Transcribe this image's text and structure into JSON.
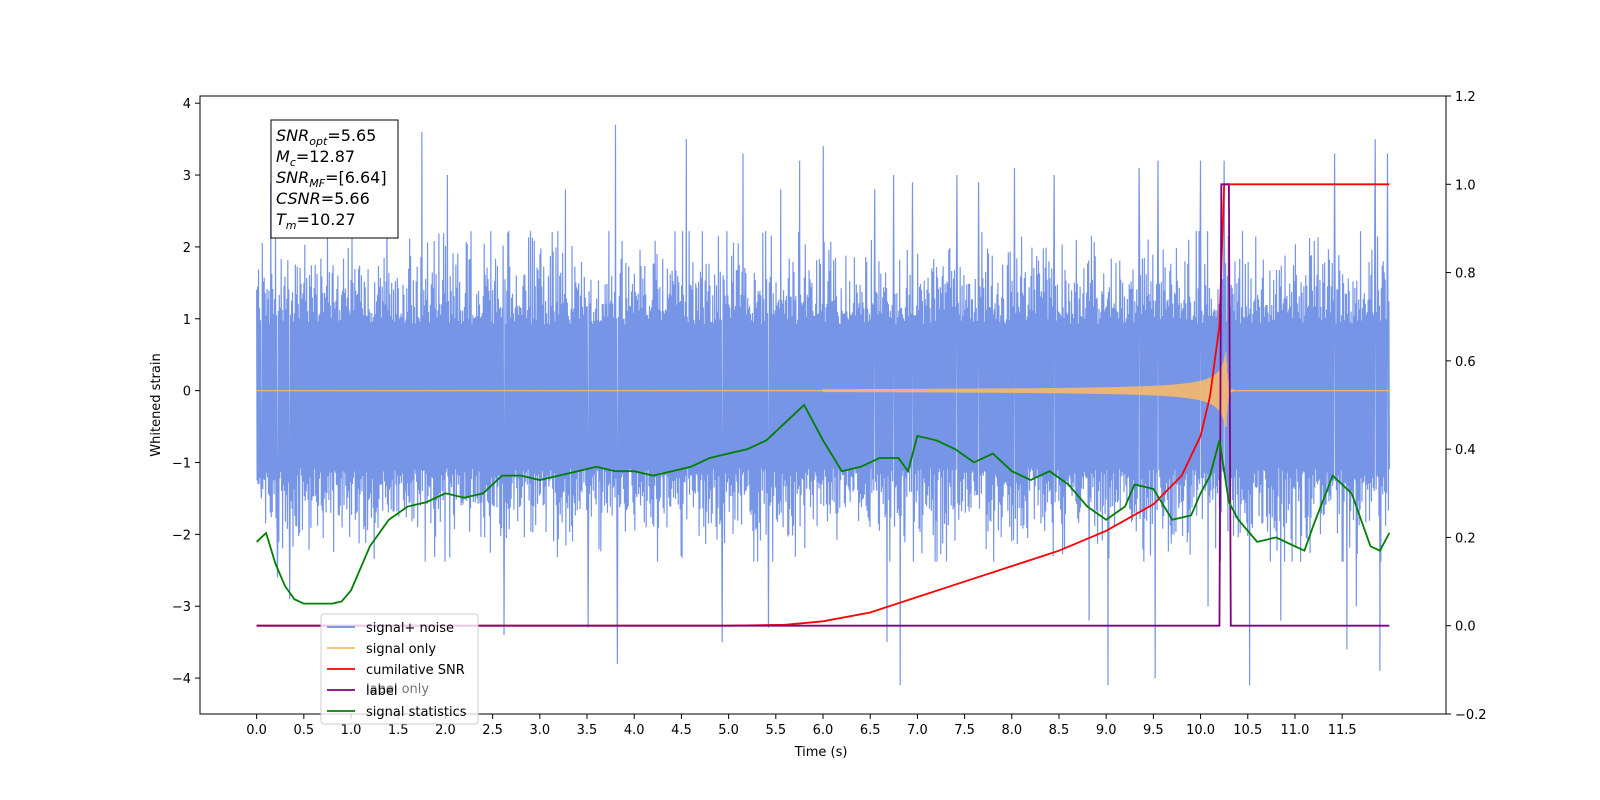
{
  "chart_data": {
    "type": "line",
    "title": "",
    "xlabel": "Time (s)",
    "ylabel": "Whitened strain",
    "xlim": [
      -0.6,
      12.6
    ],
    "ylim": [
      -4.5,
      4.1
    ],
    "y2lim": [
      -0.2,
      1.2
    ],
    "x_ticks": [
      0.0,
      0.5,
      1.0,
      1.5,
      2.0,
      2.5,
      3.0,
      3.5,
      4.0,
      4.5,
      5.0,
      5.5,
      6.0,
      6.5,
      7.0,
      7.5,
      8.0,
      8.5,
      9.0,
      9.5,
      10.0,
      10.5,
      11.0,
      11.5
    ],
    "x_tick_labels": [
      "0.0",
      "0.5",
      "1.0",
      "1.5",
      "2.0",
      "2.5",
      "3.0",
      "3.5",
      "4.0",
      "4.5",
      "5.0",
      "5.5",
      "6.0",
      "6.5",
      "7.0",
      "7.5",
      "8.0",
      "8.5",
      "9.0",
      "9.5",
      "10.0",
      "10.5",
      "11.0",
      "11.5"
    ],
    "y_ticks": [
      -4,
      -3,
      -2,
      -1,
      0,
      1,
      2,
      3,
      4
    ],
    "y_tick_labels": [
      "−4",
      "−3",
      "−2",
      "−1",
      "0",
      "1",
      "2",
      "3",
      "4"
    ],
    "y2_ticks": [
      -0.2,
      0.0,
      0.2,
      0.4,
      0.6,
      0.8,
      1.0,
      1.2
    ],
    "y2_tick_labels": [
      "−0.2",
      "0.0",
      "0.2",
      "0.4",
      "0.6",
      "0.8",
      "1.0",
      "1.2"
    ],
    "legend_position": "lower-left",
    "grid": false,
    "series": [
      {
        "name": "signal+ noise",
        "axis": "left",
        "color": "#6f8fe6",
        "x_range": [
          0.0,
          12.0
        ],
        "typical_envelope": [
          -2.0,
          1.8
        ],
        "spikes": [
          [
            0.0,
            1.4
          ],
          [
            0.05,
            -1.5
          ],
          [
            0.15,
            2.9
          ],
          [
            0.22,
            -2.6
          ],
          [
            0.35,
            -2.9
          ],
          [
            1.38,
            2.7
          ],
          [
            1.75,
            3.6
          ],
          [
            2.02,
            3.0
          ],
          [
            2.62,
            -3.4
          ],
          [
            3.27,
            2.8
          ],
          [
            3.51,
            -3.3
          ],
          [
            3.8,
            3.7
          ],
          [
            3.82,
            -3.8
          ],
          [
            4.55,
            3.5
          ],
          [
            4.93,
            -3.5
          ],
          [
            5.15,
            3.3
          ],
          [
            5.42,
            -3.3
          ],
          [
            5.55,
            2.8
          ],
          [
            5.75,
            3.2
          ],
          [
            6.0,
            3.4
          ],
          [
            6.55,
            2.8
          ],
          [
            6.68,
            -3.5
          ],
          [
            6.75,
            3.0
          ],
          [
            6.82,
            -4.1
          ],
          [
            6.95,
            2.9
          ],
          [
            7.42,
            3.0
          ],
          [
            7.65,
            2.9
          ],
          [
            8.03,
            3.1
          ],
          [
            8.45,
            3.0
          ],
          [
            8.82,
            -3.2
          ],
          [
            9.02,
            -4.1
          ],
          [
            9.35,
            3.1
          ],
          [
            9.55,
            3.2
          ],
          [
            9.52,
            -4.0
          ],
          [
            10.0,
            3.2
          ],
          [
            10.08,
            -3.0
          ],
          [
            10.25,
            3.2
          ],
          [
            10.52,
            -4.1
          ],
          [
            10.85,
            -3.2
          ],
          [
            11.42,
            3.3
          ],
          [
            11.55,
            -3.6
          ],
          [
            11.65,
            -3.0
          ],
          [
            11.85,
            3.5
          ],
          [
            11.9,
            -3.9
          ],
          [
            11.98,
            3.3
          ]
        ]
      },
      {
        "name": "signal only",
        "axis": "left",
        "color": "#f7b96a",
        "x_range": [
          0.0,
          12.0
        ],
        "chirp_merger_time": 10.27,
        "peak_amplitude": 0.55
      },
      {
        "name": "cumilative SNR",
        "axis": "right",
        "color": "#ff0000",
        "x": [
          0.0,
          5.0,
          5.6,
          6.0,
          6.5,
          7.0,
          7.5,
          8.0,
          8.5,
          9.0,
          9.5,
          9.8,
          10.0,
          10.1,
          10.2,
          10.25,
          12.0
        ],
        "y": [
          0.0,
          0.0,
          0.002,
          0.01,
          0.03,
          0.065,
          0.1,
          0.135,
          0.17,
          0.215,
          0.275,
          0.34,
          0.43,
          0.52,
          0.68,
          1.0,
          1.0
        ]
      },
      {
        "name": "label",
        "axis": "right",
        "color": "#800080",
        "x": [
          0.0,
          10.2,
          10.22,
          10.3,
          10.32,
          12.0
        ],
        "y": [
          0.0,
          0.0,
          1.0,
          1.0,
          0.0,
          0.0
        ]
      },
      {
        "name": "signal statistics",
        "axis": "right",
        "color": "#007f00",
        "x": [
          0.0,
          0.1,
          0.2,
          0.3,
          0.4,
          0.5,
          0.6,
          0.7,
          0.8,
          0.9,
          1.0,
          1.2,
          1.4,
          1.6,
          1.8,
          2.0,
          2.2,
          2.4,
          2.6,
          2.8,
          3.0,
          3.2,
          3.4,
          3.6,
          3.8,
          4.0,
          4.2,
          4.4,
          4.6,
          4.8,
          5.0,
          5.2,
          5.4,
          5.6,
          5.7,
          5.8,
          6.0,
          6.2,
          6.4,
          6.6,
          6.8,
          6.9,
          7.0,
          7.2,
          7.4,
          7.6,
          7.8,
          8.0,
          8.2,
          8.4,
          8.6,
          8.8,
          9.0,
          9.2,
          9.3,
          9.5,
          9.7,
          9.9,
          10.0,
          10.1,
          10.2,
          10.3,
          10.4,
          10.6,
          10.8,
          11.0,
          11.1,
          11.2,
          11.4,
          11.6,
          11.7,
          11.8,
          11.9,
          12.0
        ],
        "y": [
          0.19,
          0.21,
          0.14,
          0.09,
          0.06,
          0.05,
          0.05,
          0.05,
          0.05,
          0.055,
          0.08,
          0.18,
          0.24,
          0.27,
          0.28,
          0.3,
          0.29,
          0.3,
          0.34,
          0.34,
          0.33,
          0.34,
          0.35,
          0.36,
          0.35,
          0.35,
          0.34,
          0.35,
          0.36,
          0.38,
          0.39,
          0.4,
          0.42,
          0.46,
          0.48,
          0.5,
          0.42,
          0.35,
          0.36,
          0.38,
          0.38,
          0.35,
          0.43,
          0.42,
          0.4,
          0.37,
          0.39,
          0.35,
          0.33,
          0.35,
          0.32,
          0.27,
          0.24,
          0.27,
          0.32,
          0.31,
          0.24,
          0.25,
          0.3,
          0.34,
          0.42,
          0.28,
          0.24,
          0.19,
          0.2,
          0.18,
          0.17,
          0.23,
          0.34,
          0.3,
          0.24,
          0.18,
          0.17,
          0.21
        ]
      }
    ],
    "legend": [
      {
        "label": "signal+ noise",
        "color": "#6f8fe6"
      },
      {
        "label": "signal only",
        "color": "#f7b96a"
      },
      {
        "label": "cumilative SNR",
        "color": "#ff0000"
      },
      {
        "label": "label",
        "color": "#800080"
      },
      {
        "label": "signal statistics",
        "color": "#007f00"
      }
    ],
    "legend_bleed_text": "label only",
    "annotation": {
      "lines": [
        {
          "base": "SNR",
          "sub": "opt",
          "value": "=5.65"
        },
        {
          "base": "M",
          "sub": "c",
          "value": "=12.87"
        },
        {
          "base": "SNR",
          "sub": "MF",
          "value": "=[6.64]"
        },
        {
          "base": "CSNR",
          "sub": "",
          "value": "=5.66"
        },
        {
          "base": "T",
          "sub": "m",
          "value": "=10.27"
        }
      ]
    }
  }
}
